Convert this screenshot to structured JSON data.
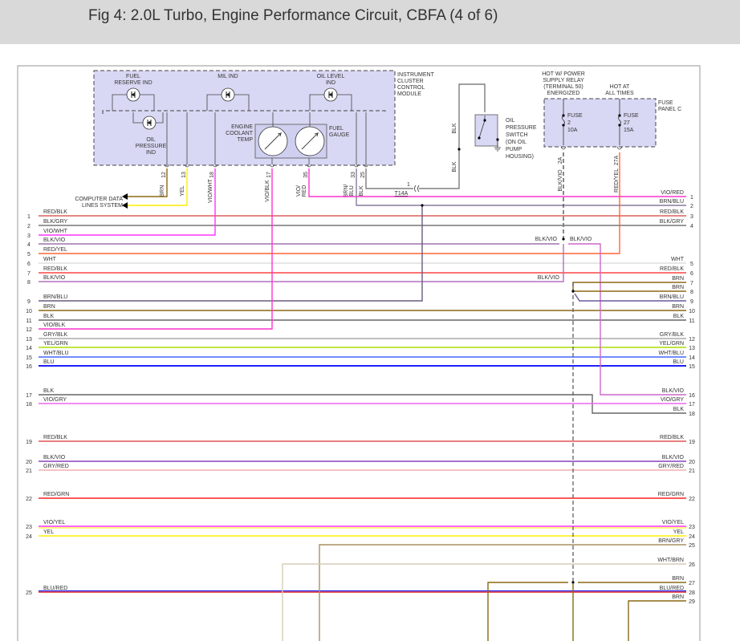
{
  "header": {
    "title": "Fig 4: 2.0L Turbo, Engine Performance Circuit, CBFA (4 of 6)"
  },
  "cluster": {
    "name": [
      "INSTRUMENT",
      "CLUSTER",
      "CONTROL",
      "MODULE"
    ],
    "fuel_reserve": [
      "FUEL",
      "RESERVE IND"
    ],
    "mil": [
      "MIL IND"
    ],
    "oil_level": [
      "OIL LEVEL",
      "IND"
    ],
    "oil_pressure": [
      "OIL",
      "PRESSURE",
      "IND"
    ],
    "coolant": [
      "ENGINE",
      "COOLANT",
      "TEMP"
    ],
    "fuel_gauge": [
      "FUEL",
      "GAUGE"
    ],
    "pins": [
      {
        "pin": "12",
        "label": [
          "BRN"
        ]
      },
      {
        "pin": "13",
        "label": [
          "YEL"
        ]
      },
      {
        "pin": "18",
        "label": [
          "VIO/WHT"
        ]
      },
      {
        "pin": "17",
        "label": [
          "VIO/BLK"
        ]
      },
      {
        "pin": "35",
        "label": [
          "VIO/",
          "RED"
        ]
      },
      {
        "pin": "33",
        "label": [
          "BRN/",
          "BLU"
        ]
      },
      {
        "pin": "25",
        "label": [
          "BLK"
        ]
      }
    ]
  },
  "computer_data": [
    "COMPUTER DATA",
    "LINES SYSTEM"
  ],
  "connector": {
    "pin": "1",
    "name": "T14A"
  },
  "oil_switch": {
    "name": [
      "OIL",
      "PRESSURE",
      "SWITCH",
      "(ON OIL",
      "PUMP",
      "HOUSING)"
    ],
    "wire_label": "BLK"
  },
  "fuse_panel": {
    "name": [
      "FUSE",
      "PANEL C"
    ],
    "hot_relay": [
      "HOT W/ POWER",
      "SUPPLY RELAY",
      "(TERMINAL 50)",
      "ENERGIZED"
    ],
    "hot_always": [
      "HOT AT",
      "ALL TIMES"
    ],
    "fuses": [
      {
        "label": [
          "FUSE",
          "2",
          "10A"
        ],
        "pin": "2A",
        "wire": "BLK/VIO"
      },
      {
        "label": [
          "FUSE",
          "27",
          "15A"
        ],
        "pin": "27A",
        "wire": "RED/YEL"
      }
    ]
  },
  "splice_labels": [
    "BLK/VIO",
    "BLK/VIO",
    "BLK/VIO"
  ],
  "left_wires": [
    {
      "pin": "1",
      "label": "RED/BLK",
      "color": "#d9605a"
    },
    {
      "pin": "2",
      "label": "BLK/GRY",
      "color": "#777777"
    },
    {
      "pin": "3",
      "label": "VIO/WHT",
      "color": "#ff33ff"
    },
    {
      "pin": "4",
      "label": "BLK/VIO",
      "color": "#a070b0"
    },
    {
      "pin": "5",
      "label": "RED/YEL",
      "color": "#ff6633"
    },
    {
      "pin": "6",
      "label": "WHT",
      "color": "#dddddd"
    },
    {
      "pin": "7",
      "label": "RED/BLK",
      "color": "#ff4444"
    },
    {
      "pin": "8",
      "label": "BLK/VIO",
      "color": "#b070c0"
    },
    {
      "pin": "9",
      "label": "BRN/BLU",
      "color": "#6a5a80"
    },
    {
      "pin": "10",
      "label": "BRN",
      "color": "#8b6914"
    },
    {
      "pin": "11",
      "label": "BLK",
      "color": "#666666"
    },
    {
      "pin": "12",
      "label": "VIO/BLK",
      "color": "#ff33cc"
    },
    {
      "pin": "13",
      "label": "GRY/BLK",
      "color": "#aaaaaa"
    },
    {
      "pin": "14",
      "label": "YEL/GRN",
      "color": "#aadd00"
    },
    {
      "pin": "15",
      "label": "WHT/BLU",
      "color": "#4466ff"
    },
    {
      "pin": "16",
      "label": "BLU",
      "color": "#0000ff"
    },
    {
      "pin": "17",
      "label": "BLK",
      "color": "#666666"
    },
    {
      "pin": "18",
      "label": "VIO/GRY",
      "color": "#ee66ee"
    },
    {
      "pin": "19",
      "label": "RED/BLK",
      "color": "#e05555"
    },
    {
      "pin": "20",
      "label": "BLK/VIO",
      "color": "#8a40c0"
    },
    {
      "pin": "21",
      "label": "GRY/RED",
      "color": "#f0b0b0"
    },
    {
      "pin": "22",
      "label": "RED/GRN",
      "color": "#ff2020"
    },
    {
      "pin": "23",
      "label": "VIO/YEL",
      "color": "#ff33ff"
    },
    {
      "pin": "24",
      "label": "YEL",
      "color": "#ffee00"
    },
    {
      "pin": "25",
      "label": "BLU/RED",
      "color": "#e02020"
    }
  ],
  "right_wires": [
    {
      "pin": "1",
      "label": "VIO/RED",
      "color": "#ff33cc"
    },
    {
      "pin": "2",
      "label": "BRN/BLU",
      "color": "#8a7a9a"
    },
    {
      "pin": "3",
      "label": "RED/BLK",
      "color": "#d9605a"
    },
    {
      "pin": "4",
      "label": "BLK/GRY",
      "color": "#777777"
    },
    {
      "pin": "5",
      "label": "WHT",
      "color": "#dddddd"
    },
    {
      "pin": "6",
      "label": "RED/BLK",
      "color": "#ff4444"
    },
    {
      "pin": "7",
      "label": "BRN",
      "color": "#8b6914"
    },
    {
      "pin": "8",
      "label": "BRN",
      "color": "#8b6914"
    },
    {
      "pin": "9",
      "label": "BRN/BLU",
      "color": "#6a5a9a"
    },
    {
      "pin": "10",
      "label": "BRN",
      "color": "#8b6914"
    },
    {
      "pin": "11",
      "label": "BLK",
      "color": "#666666"
    },
    {
      "pin": "12",
      "label": "GRY/BLK",
      "color": "#aaaaaa"
    },
    {
      "pin": "13",
      "label": "YEL/GRN",
      "color": "#aadd00"
    },
    {
      "pin": "14",
      "label": "WHT/BLU",
      "color": "#4466ff"
    },
    {
      "pin": "15",
      "label": "BLU",
      "color": "#0000ff"
    },
    {
      "pin": "16",
      "label": "BLK/VIO",
      "color": "#cc66cc"
    },
    {
      "pin": "17",
      "label": "VIO/GRY",
      "color": "#ee66ee"
    },
    {
      "pin": "18",
      "label": "BLK",
      "color": "#666666"
    },
    {
      "pin": "19",
      "label": "RED/BLK",
      "color": "#e05555"
    },
    {
      "pin": "20",
      "label": "BLK/VIO",
      "color": "#8a40c0"
    },
    {
      "pin": "21",
      "label": "GRY/RED",
      "color": "#f0b0b0"
    },
    {
      "pin": "22",
      "label": "RED/GRN",
      "color": "#ff2020"
    },
    {
      "pin": "23",
      "label": "VIO/YEL",
      "color": "#ff33ff"
    },
    {
      "pin": "24",
      "label": "YEL",
      "color": "#ffee00"
    },
    {
      "pin": "25",
      "label": "BRN/GRY",
      "color": "#a89060"
    },
    {
      "pin": "26",
      "label": "WHT/BRN",
      "color": "#d8ccb8"
    },
    {
      "pin": "27",
      "label": "BRN",
      "color": "#8b6914"
    },
    {
      "pin": "28",
      "label": "BLU/RED",
      "color": "#e02020"
    },
    {
      "pin": "29",
      "label": "BRN",
      "color": "#8b6914"
    }
  ],
  "colors": {
    "module_fill": "#d8d8f4",
    "border": "#555555",
    "frame": "#aaaaaa",
    "header_bg": "#d9d9d9"
  }
}
